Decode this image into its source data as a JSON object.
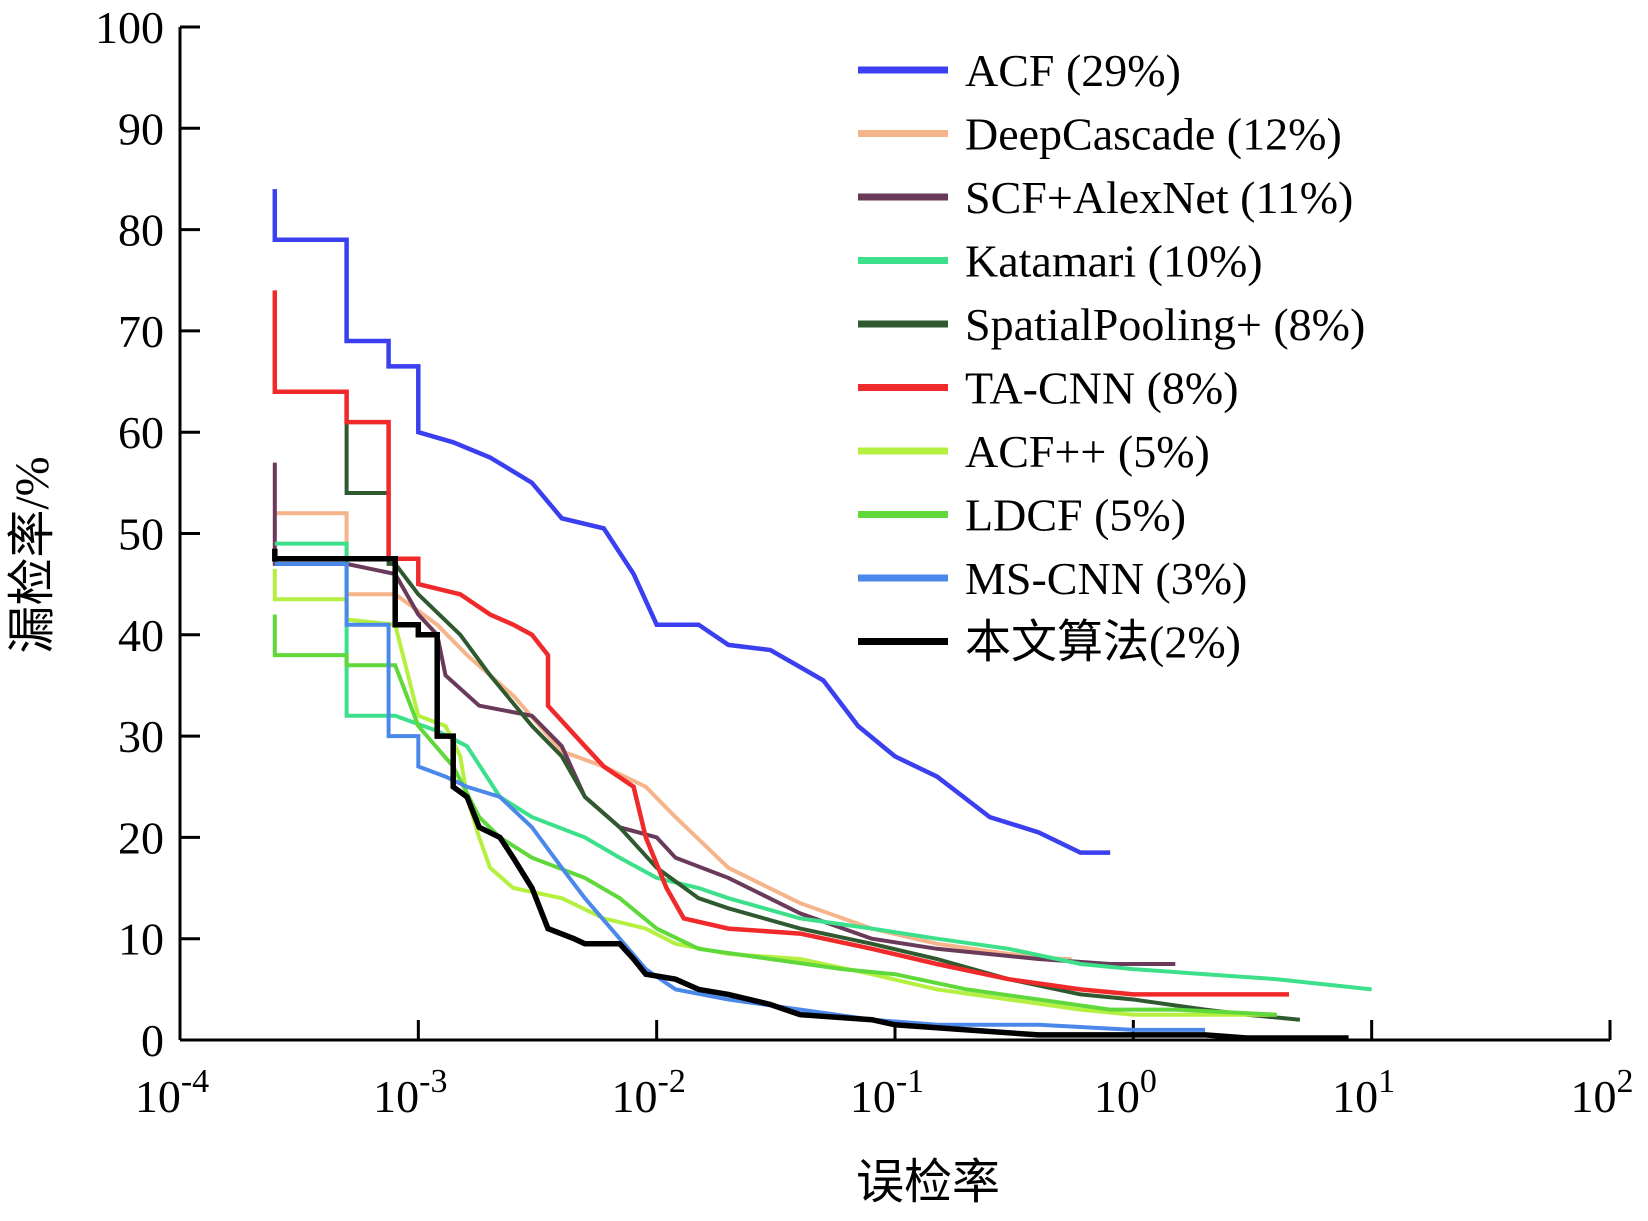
{
  "chart_data": {
    "type": "line",
    "title": "",
    "xlabel": "误检率",
    "ylabel": "漏检率/%",
    "xscale": "log",
    "xlim": [
      0.0001,
      100
    ],
    "ylim": [
      0,
      100
    ],
    "x_ticks": [
      {
        "value": 0.0001,
        "base": "10",
        "exp": "-4"
      },
      {
        "value": 0.001,
        "base": "10",
        "exp": "-3"
      },
      {
        "value": 0.01,
        "base": "10",
        "exp": "-2"
      },
      {
        "value": 0.1,
        "base": "10",
        "exp": "-1"
      },
      {
        "value": 1,
        "base": "10",
        "exp": "0"
      },
      {
        "value": 10,
        "base": "10",
        "exp": "1"
      },
      {
        "value": 100,
        "base": "10",
        "exp": "2"
      }
    ],
    "y_ticks": [
      "0",
      "10",
      "20",
      "30",
      "40",
      "50",
      "60",
      "70",
      "80",
      "90",
      "100"
    ],
    "grid": false,
    "legend_position": "top-right",
    "series": [
      {
        "name": "ACF (29%)",
        "color": "#3a3ff0",
        "width": 4.5,
        "points": [
          [
            0.00025,
            84
          ],
          [
            0.00025,
            79
          ],
          [
            0.0005,
            79
          ],
          [
            0.0005,
            69
          ],
          [
            0.00075,
            69
          ],
          [
            0.00075,
            66.5
          ],
          [
            0.001,
            66.5
          ],
          [
            0.001,
            60
          ],
          [
            0.0014,
            59
          ],
          [
            0.002,
            57.5
          ],
          [
            0.003,
            55
          ],
          [
            0.004,
            51.5
          ],
          [
            0.006,
            50.5
          ],
          [
            0.008,
            46
          ],
          [
            0.01,
            41
          ],
          [
            0.015,
            41
          ],
          [
            0.02,
            39
          ],
          [
            0.03,
            38.5
          ],
          [
            0.05,
            35.5
          ],
          [
            0.07,
            31
          ],
          [
            0.1,
            28
          ],
          [
            0.15,
            26
          ],
          [
            0.25,
            22
          ],
          [
            0.4,
            20.5
          ],
          [
            0.6,
            18.5
          ],
          [
            0.8,
            18.5
          ]
        ]
      },
      {
        "name": "DeepCascade (12%)",
        "color": "#f5b48a",
        "width": 4,
        "points": [
          [
            0.00025,
            52
          ],
          [
            0.0005,
            52
          ],
          [
            0.0005,
            44
          ],
          [
            0.0008,
            44
          ],
          [
            0.0012,
            41
          ],
          [
            0.0016,
            38
          ],
          [
            0.0025,
            34
          ],
          [
            0.004,
            28.5
          ],
          [
            0.006,
            27
          ],
          [
            0.009,
            25
          ],
          [
            0.012,
            22
          ],
          [
            0.02,
            17
          ],
          [
            0.04,
            13.5
          ],
          [
            0.08,
            11
          ],
          [
            0.15,
            9.5
          ],
          [
            0.3,
            8.5
          ],
          [
            0.5,
            8
          ],
          [
            0.55,
            8
          ]
        ]
      },
      {
        "name": "SCF+AlexNet (11%)",
        "color": "#6a3a5a",
        "width": 4,
        "points": [
          [
            0.00025,
            57
          ],
          [
            0.00025,
            47
          ],
          [
            0.0005,
            47
          ],
          [
            0.0008,
            46
          ],
          [
            0.001,
            42
          ],
          [
            0.0012,
            40
          ],
          [
            0.0013,
            36
          ],
          [
            0.0018,
            33
          ],
          [
            0.003,
            32
          ],
          [
            0.004,
            29
          ],
          [
            0.005,
            24
          ],
          [
            0.007,
            21
          ],
          [
            0.01,
            20
          ],
          [
            0.012,
            18
          ],
          [
            0.02,
            16
          ],
          [
            0.04,
            12.5
          ],
          [
            0.08,
            10
          ],
          [
            0.15,
            9
          ],
          [
            0.4,
            8
          ],
          [
            0.8,
            7.5
          ],
          [
            1.5,
            7.5
          ]
        ]
      },
      {
        "name": "Katamari (10%)",
        "color": "#3de08a",
        "width": 4,
        "points": [
          [
            0.00025,
            49
          ],
          [
            0.0005,
            49
          ],
          [
            0.0005,
            32
          ],
          [
            0.0008,
            32
          ],
          [
            0.0012,
            30.5
          ],
          [
            0.0016,
            29
          ],
          [
            0.0022,
            24
          ],
          [
            0.003,
            22
          ],
          [
            0.005,
            20
          ],
          [
            0.007,
            18
          ],
          [
            0.01,
            16
          ],
          [
            0.015,
            15
          ],
          [
            0.02,
            14
          ],
          [
            0.04,
            12
          ],
          [
            0.08,
            11
          ],
          [
            0.15,
            10
          ],
          [
            0.3,
            9
          ],
          [
            0.6,
            7.5
          ],
          [
            1,
            7
          ],
          [
            2,
            6.5
          ],
          [
            4,
            6
          ],
          [
            10,
            5
          ]
        ]
      },
      {
        "name": "SpatialPooling+ (8%)",
        "color": "#2f5a30",
        "width": 4,
        "points": [
          [
            0.00025,
            64
          ],
          [
            0.0005,
            64
          ],
          [
            0.0005,
            60
          ],
          [
            0.0005,
            54
          ],
          [
            0.00075,
            54
          ],
          [
            0.00075,
            47
          ],
          [
            0.0008,
            47
          ],
          [
            0.001,
            44
          ],
          [
            0.0015,
            40
          ],
          [
            0.002,
            36
          ],
          [
            0.003,
            31
          ],
          [
            0.004,
            28
          ],
          [
            0.005,
            24
          ],
          [
            0.007,
            21
          ],
          [
            0.01,
            17
          ],
          [
            0.015,
            14
          ],
          [
            0.02,
            13
          ],
          [
            0.04,
            11
          ],
          [
            0.08,
            9.5
          ],
          [
            0.15,
            8
          ],
          [
            0.3,
            6
          ],
          [
            0.6,
            4.5
          ],
          [
            1,
            4
          ],
          [
            2,
            3
          ],
          [
            3,
            2.5
          ],
          [
            5,
            2
          ]
        ]
      },
      {
        "name": "TA-CNN (8%)",
        "color": "#f02a2a",
        "width": 4.5,
        "points": [
          [
            0.00025,
            74
          ],
          [
            0.00025,
            64
          ],
          [
            0.0005,
            64
          ],
          [
            0.0005,
            61
          ],
          [
            0.00075,
            61
          ],
          [
            0.00075,
            47.5
          ],
          [
            0.001,
            47.5
          ],
          [
            0.001,
            45
          ],
          [
            0.0015,
            44
          ],
          [
            0.002,
            42
          ],
          [
            0.0025,
            41
          ],
          [
            0.003,
            40
          ],
          [
            0.0035,
            38
          ],
          [
            0.0035,
            33
          ],
          [
            0.004,
            31.5
          ],
          [
            0.005,
            29
          ],
          [
            0.006,
            27
          ],
          [
            0.008,
            25
          ],
          [
            0.009,
            20
          ],
          [
            0.011,
            15
          ],
          [
            0.013,
            12
          ],
          [
            0.02,
            11
          ],
          [
            0.04,
            10.5
          ],
          [
            0.08,
            9
          ],
          [
            0.15,
            7.5
          ],
          [
            0.3,
            6
          ],
          [
            0.6,
            5
          ],
          [
            1,
            4.5
          ],
          [
            2,
            4.5
          ],
          [
            4.5,
            4.5
          ]
        ]
      },
      {
        "name": "ACF++ (5%)",
        "color": "#b5f040",
        "width": 4,
        "points": [
          [
            0.00025,
            46.5
          ],
          [
            0.00025,
            43.5
          ],
          [
            0.0005,
            43.5
          ],
          [
            0.0005,
            41.5
          ],
          [
            0.0008,
            41
          ],
          [
            0.001,
            32
          ],
          [
            0.0013,
            31
          ],
          [
            0.0015,
            28
          ],
          [
            0.0016,
            24
          ],
          [
            0.0018,
            20
          ],
          [
            0.002,
            17
          ],
          [
            0.0025,
            15
          ],
          [
            0.004,
            14
          ],
          [
            0.006,
            12
          ],
          [
            0.009,
            11
          ],
          [
            0.012,
            9.5
          ],
          [
            0.02,
            8.5
          ],
          [
            0.04,
            8
          ],
          [
            0.08,
            6.5
          ],
          [
            0.15,
            5
          ],
          [
            0.3,
            4
          ],
          [
            0.6,
            3
          ],
          [
            1,
            2.5
          ],
          [
            2,
            2.5
          ],
          [
            4,
            2.5
          ]
        ]
      },
      {
        "name": "LDCF (5%)",
        "color": "#5ed83a",
        "width": 4,
        "points": [
          [
            0.00025,
            42
          ],
          [
            0.00025,
            38
          ],
          [
            0.0005,
            38
          ],
          [
            0.0005,
            37
          ],
          [
            0.0008,
            37
          ],
          [
            0.001,
            31
          ],
          [
            0.0014,
            27
          ],
          [
            0.0018,
            22
          ],
          [
            0.0022,
            20
          ],
          [
            0.003,
            18
          ],
          [
            0.005,
            16
          ],
          [
            0.007,
            14
          ],
          [
            0.01,
            11
          ],
          [
            0.015,
            9
          ],
          [
            0.03,
            8
          ],
          [
            0.06,
            7
          ],
          [
            0.1,
            6.5
          ],
          [
            0.2,
            5
          ],
          [
            0.4,
            4
          ],
          [
            0.8,
            3
          ],
          [
            1.5,
            3
          ],
          [
            4,
            2.5
          ]
        ]
      },
      {
        "name": "MS-CNN (3%)",
        "color": "#4a88ea",
        "width": 4,
        "points": [
          [
            0.00025,
            47
          ],
          [
            0.0005,
            47
          ],
          [
            0.0005,
            41
          ],
          [
            0.00075,
            41
          ],
          [
            0.00075,
            30
          ],
          [
            0.001,
            30
          ],
          [
            0.001,
            27
          ],
          [
            0.0013,
            26
          ],
          [
            0.0016,
            25
          ],
          [
            0.0022,
            24
          ],
          [
            0.003,
            21
          ],
          [
            0.004,
            17
          ],
          [
            0.005,
            14
          ],
          [
            0.007,
            10
          ],
          [
            0.009,
            7
          ],
          [
            0.012,
            5
          ],
          [
            0.02,
            4
          ],
          [
            0.04,
            3
          ],
          [
            0.08,
            2
          ],
          [
            0.15,
            1.5
          ],
          [
            0.4,
            1.5
          ],
          [
            1,
            1
          ],
          [
            2,
            1
          ]
        ]
      },
      {
        "name": "本文算法(2%)",
        "color": "#000000",
        "width": 5.5,
        "points": [
          [
            0.00025,
            48.5
          ],
          [
            0.00025,
            47.5
          ],
          [
            0.0005,
            47.5
          ],
          [
            0.0008,
            47.5
          ],
          [
            0.0008,
            41
          ],
          [
            0.001,
            41
          ],
          [
            0.001,
            40
          ],
          [
            0.0012,
            40
          ],
          [
            0.0012,
            30
          ],
          [
            0.0014,
            30
          ],
          [
            0.0014,
            25
          ],
          [
            0.0016,
            24
          ],
          [
            0.0018,
            21
          ],
          [
            0.0022,
            20
          ],
          [
            0.0025,
            18
          ],
          [
            0.003,
            15
          ],
          [
            0.0035,
            11
          ],
          [
            0.0045,
            10
          ],
          [
            0.005,
            9.5
          ],
          [
            0.007,
            9.5
          ],
          [
            0.008,
            8
          ],
          [
            0.009,
            6.5
          ],
          [
            0.012,
            6
          ],
          [
            0.015,
            5
          ],
          [
            0.02,
            4.5
          ],
          [
            0.03,
            3.5
          ],
          [
            0.04,
            2.5
          ],
          [
            0.08,
            2
          ],
          [
            0.1,
            1.5
          ],
          [
            0.2,
            1
          ],
          [
            0.4,
            0.5
          ],
          [
            1,
            0.5
          ],
          [
            2,
            0.5
          ],
          [
            3,
            0.2
          ],
          [
            8,
            0.2
          ]
        ]
      }
    ]
  }
}
